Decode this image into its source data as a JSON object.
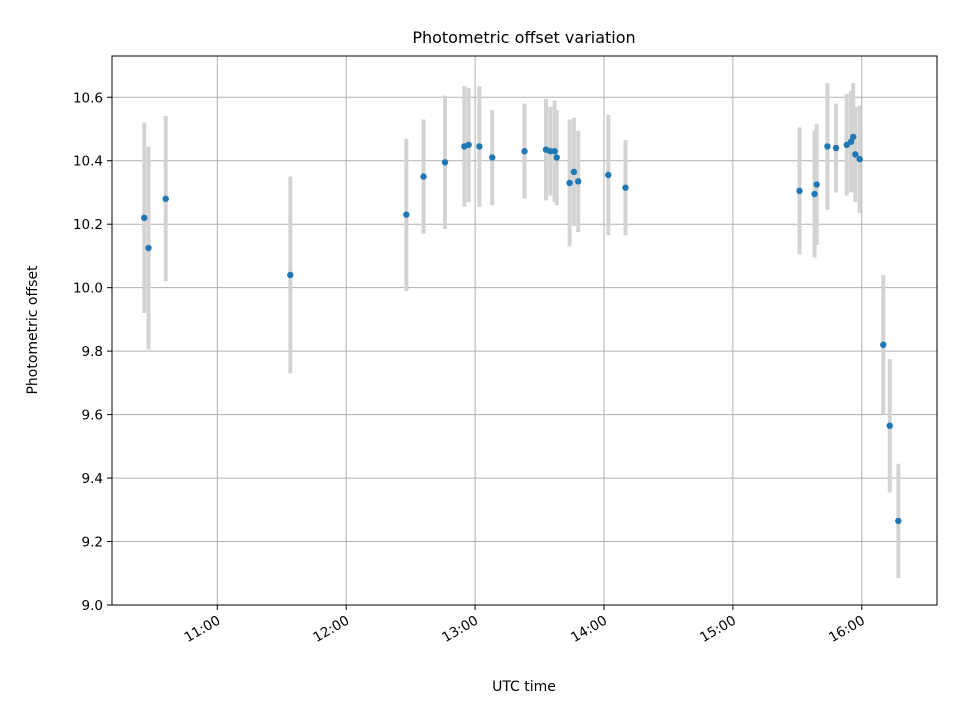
{
  "chart_data": {
    "type": "scatter",
    "title": "Photometric offset variation",
    "xlabel": "UTC time",
    "ylabel": "Photometric offset",
    "x_unit": "UTC time of day",
    "ylim": [
      9.0,
      10.73
    ],
    "xlim": [
      "10:11",
      "16:35"
    ],
    "grid": true,
    "x_ticks": [
      "11:00",
      "12:00",
      "13:00",
      "14:00",
      "15:00",
      "16:00"
    ],
    "y_ticks": [
      "9.0",
      "9.2",
      "9.4",
      "9.6",
      "9.8",
      "10.0",
      "10.2",
      "10.4",
      "10.6"
    ],
    "x_tick_label_rotation": 30,
    "colors": {
      "point": "#1f77b4",
      "errorbar": "#d3d3d3"
    },
    "series": [
      {
        "points": [
          {
            "x": "10:26",
            "y": 10.22,
            "err": 0.3
          },
          {
            "x": "10:28",
            "y": 10.125,
            "err": 0.32
          },
          {
            "x": "10:36",
            "y": 10.28,
            "err": 0.26
          },
          {
            "x": "11:34",
            "y": 10.04,
            "err": 0.31
          },
          {
            "x": "12:28",
            "y": 10.23,
            "err": 0.24
          },
          {
            "x": "12:36",
            "y": 10.35,
            "err": 0.18
          },
          {
            "x": "12:46",
            "y": 10.395,
            "err": 0.21
          },
          {
            "x": "12:55",
            "y": 10.445,
            "err": 0.19
          },
          {
            "x": "12:57",
            "y": 10.45,
            "err": 0.18
          },
          {
            "x": "13:02",
            "y": 10.445,
            "err": 0.19
          },
          {
            "x": "13:08",
            "y": 10.41,
            "err": 0.15
          },
          {
            "x": "13:23",
            "y": 10.43,
            "err": 0.15
          },
          {
            "x": "13:33",
            "y": 10.435,
            "err": 0.16
          },
          {
            "x": "13:35",
            "y": 10.43,
            "err": 0.14
          },
          {
            "x": "13:37",
            "y": 10.43,
            "err": 0.16
          },
          {
            "x": "13:38",
            "y": 10.41,
            "err": 0.15
          },
          {
            "x": "13:44",
            "y": 10.33,
            "err": 0.2
          },
          {
            "x": "13:46",
            "y": 10.365,
            "err": 0.17
          },
          {
            "x": "13:48",
            "y": 10.335,
            "err": 0.16
          },
          {
            "x": "14:02",
            "y": 10.355,
            "err": 0.19
          },
          {
            "x": "14:10",
            "y": 10.315,
            "err": 0.15
          },
          {
            "x": "15:31",
            "y": 10.305,
            "err": 0.2
          },
          {
            "x": "15:38",
            "y": 10.295,
            "err": 0.2
          },
          {
            "x": "15:39",
            "y": 10.325,
            "err": 0.19
          },
          {
            "x": "15:44",
            "y": 10.445,
            "err": 0.2
          },
          {
            "x": "15:48",
            "y": 10.44,
            "err": 0.14
          },
          {
            "x": "15:53",
            "y": 10.45,
            "err": 0.16
          },
          {
            "x": "15:55",
            "y": 10.46,
            "err": 0.16
          },
          {
            "x": "15:56",
            "y": 10.475,
            "err": 0.17
          },
          {
            "x": "15:57",
            "y": 10.42,
            "err": 0.15
          },
          {
            "x": "15:59",
            "y": 10.405,
            "err": 0.17
          },
          {
            "x": "16:10",
            "y": 9.82,
            "err": 0.22
          },
          {
            "x": "16:13",
            "y": 9.565,
            "err": 0.21
          },
          {
            "x": "16:17",
            "y": 9.265,
            "err": 0.18
          }
        ]
      }
    ]
  }
}
